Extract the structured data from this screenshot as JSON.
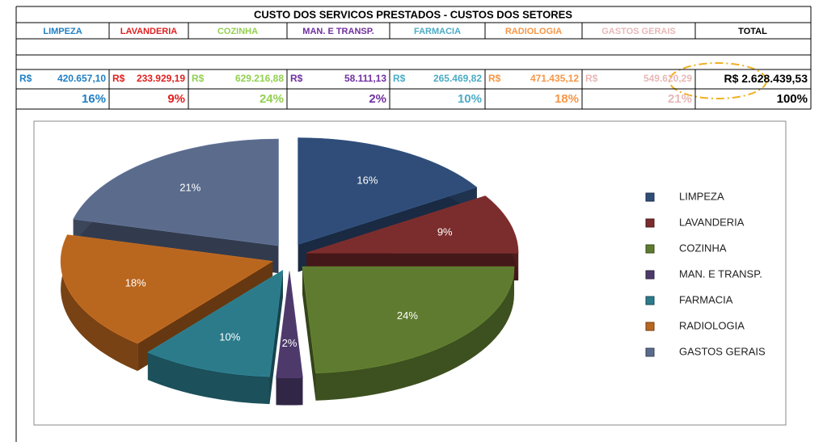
{
  "table": {
    "title": "CUSTO DOS SERVICOS PRESTADOS - CUSTOS DOS SETORES",
    "total_header": "TOTAL",
    "colors": [
      "#1f7fc4",
      "#e02020",
      "#92d050",
      "#7030a0",
      "#4bacc6",
      "#f79646",
      "#e6b8b7"
    ],
    "currency": "R$",
    "amounts": [
      "420.657,10",
      "233.929,19",
      "629.216,88",
      "58.111,13",
      "265.469,82",
      "471.435,12",
      "549.620,29"
    ],
    "total_amount": "2.628.439,53",
    "total_percent": "100%"
  },
  "chart_data": {
    "type": "pie",
    "categories": [
      "LIMPEZA",
      "LAVANDERIA",
      "COZINHA",
      "MAN. E TRANSP.",
      "FARMACIA",
      "RADIOLOGIA",
      "GASTOS GERAIS"
    ],
    "values": [
      16,
      9,
      24,
      2,
      10,
      18,
      21
    ],
    "value_labels": [
      "16%",
      "9%",
      "24%",
      "2%",
      "10%",
      "18%",
      "21%"
    ],
    "colors": [
      "#2f4d78",
      "#7b2c2c",
      "#5e7b2f",
      "#4d3a6b",
      "#2b7b8b",
      "#b9661f",
      "#5b6b8c"
    ],
    "legend": "right"
  }
}
